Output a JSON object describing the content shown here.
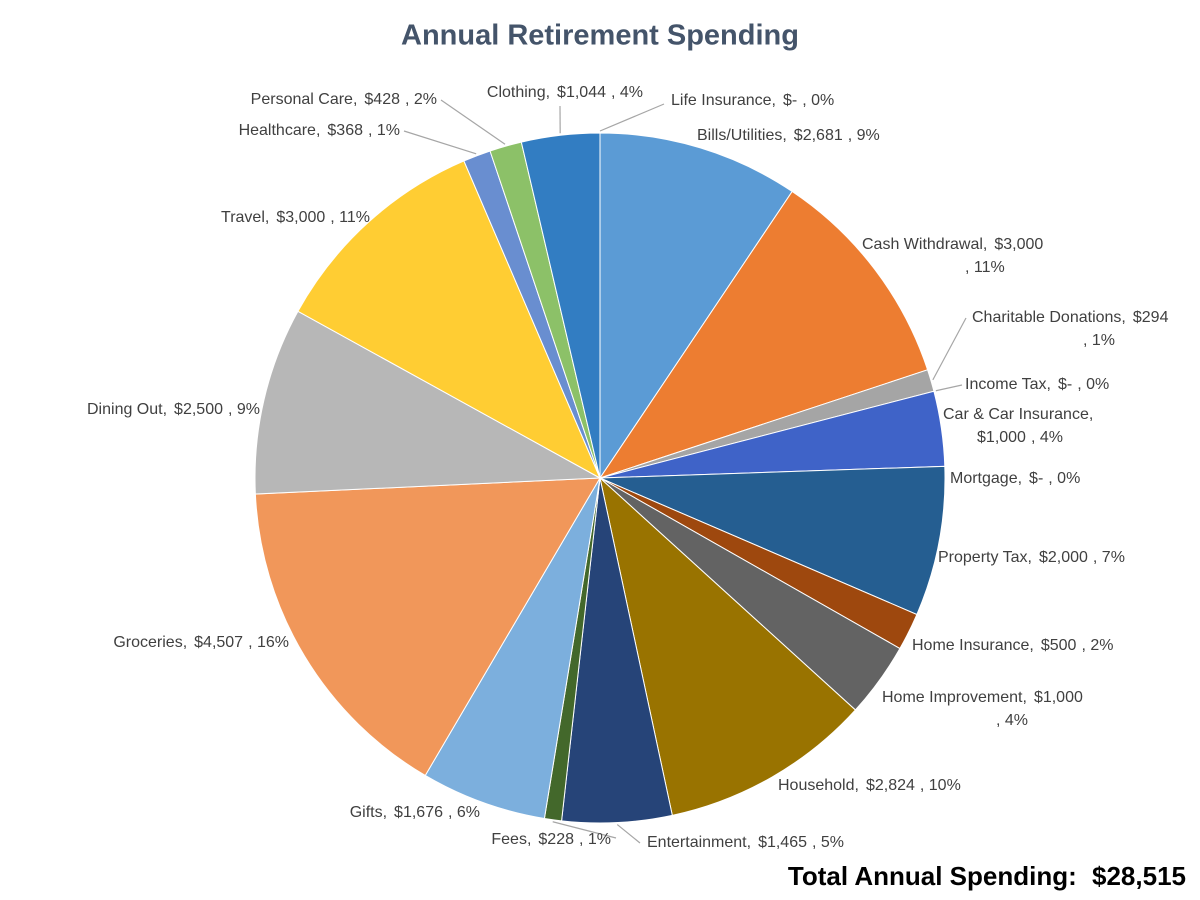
{
  "chart_data": {
    "type": "pie",
    "title": "Annual Retirement Spending",
    "categories": [
      "Bills/Utilities,",
      "Cash Withdrawal,",
      "Charitable Donations,",
      "Income Tax,",
      "Car & Car Insurance,",
      "Mortgage,",
      "Property Tax,",
      "Home Insurance,",
      "Home Improvement,",
      "Household,",
      "Entertainment,",
      "Fees,",
      "Gifts,",
      "Groceries,",
      "Dining Out,",
      "Travel,",
      "Healthcare,",
      "Personal Care,",
      "Clothing,",
      "Life Insurance,"
    ],
    "values": [
      2681,
      3000,
      294,
      0,
      1000,
      0,
      2000,
      500,
      1000,
      2824,
      1465,
      228,
      1676,
      4507,
      2500,
      3000,
      368,
      428,
      1044,
      0
    ],
    "value_labels": [
      "$2,681",
      "$3,000",
      "$294",
      "$-",
      "$1,000",
      "$-",
      "$2,000",
      "$500",
      "$1,000",
      "$2,824",
      "$1,465",
      "$228",
      "$1,676",
      "$4,507",
      "$2,500",
      "$3,000",
      "$368",
      "$428",
      "$1,044",
      "$-"
    ],
    "percent_labels": [
      ", 9%",
      ", 11%",
      ", 1%",
      ", 0%",
      ", 4%",
      ", 0%",
      ", 7%",
      ", 2%",
      ", 4%",
      ", 10%",
      ", 5%",
      ", 1%",
      ", 6%",
      ", 16%",
      ", 9%",
      ", 11%",
      ", 1%",
      ", 2%",
      ", 4%",
      ", 0%"
    ],
    "colors": [
      "#5b9bd5",
      "#ed7d31",
      "#a5a5a5",
      "#ffc000",
      "#3f63c8",
      "#70ad47",
      "#255e91",
      "#9e480e",
      "#636363",
      "#997300",
      "#264478",
      "#43682b",
      "#7cafdd",
      "#f1975a",
      "#b7b7b7",
      "#ffcd33",
      "#698ed0",
      "#8cc168",
      "#327dc2",
      "#2f5597"
    ],
    "total": {
      "label": "Total Annual Spending:",
      "value": 28515,
      "value_label": "$28,515"
    }
  }
}
